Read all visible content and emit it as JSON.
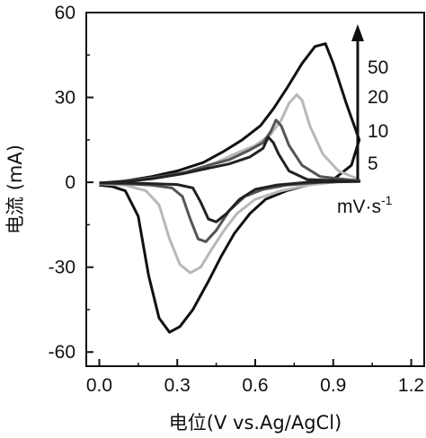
{
  "chart_data": {
    "type": "line",
    "title": "",
    "xlabel": "电位(V vs.Ag/AgCl)",
    "ylabel": "电流 (mA)",
    "xlim": [
      -0.05,
      1.25
    ],
    "ylim": [
      -65,
      60
    ],
    "xticks": [
      "0.0",
      "0.3",
      "0.6",
      "0.9",
      "1.2"
    ],
    "xtick_values": [
      0.0,
      0.3,
      0.6,
      0.9,
      1.2
    ],
    "yticks": [
      "60",
      "30",
      "0",
      "-30",
      "-60"
    ],
    "ytick_values": [
      60,
      30,
      0,
      -30,
      -60
    ],
    "grid": false,
    "legend": {
      "placement": "right",
      "labels": [
        "50",
        "20",
        "10",
        "5"
      ],
      "unit_main": "mV·s",
      "unit_exp": "-1",
      "arrow": "up"
    },
    "series": [
      {
        "label": "50",
        "color": "#111111",
        "points": [
          [
            0.0,
            -1
          ],
          [
            0.05,
            -1.5
          ],
          [
            0.1,
            -3
          ],
          [
            0.15,
            -12
          ],
          [
            0.19,
            -33
          ],
          [
            0.23,
            -48
          ],
          [
            0.27,
            -53
          ],
          [
            0.31,
            -51
          ],
          [
            0.36,
            -45
          ],
          [
            0.42,
            -35
          ],
          [
            0.47,
            -26
          ],
          [
            0.52,
            -18
          ],
          [
            0.58,
            -11
          ],
          [
            0.64,
            -6
          ],
          [
            0.72,
            -3
          ],
          [
            0.8,
            -1
          ],
          [
            0.9,
            1
          ],
          [
            0.97,
            6
          ],
          [
            1.0,
            15
          ],
          [
            0.95,
            28
          ],
          [
            0.9,
            42
          ],
          [
            0.87,
            49
          ],
          [
            0.83,
            48
          ],
          [
            0.78,
            42
          ],
          [
            0.72,
            33
          ],
          [
            0.67,
            26
          ],
          [
            0.62,
            20
          ],
          [
            0.55,
            15
          ],
          [
            0.48,
            11
          ],
          [
            0.4,
            7
          ],
          [
            0.3,
            4
          ],
          [
            0.2,
            2
          ],
          [
            0.1,
            0.5
          ],
          [
            0.0,
            -1
          ]
        ]
      },
      {
        "label": "20",
        "color": "#b8b8b8",
        "points": [
          [
            0.0,
            -0.5
          ],
          [
            0.1,
            -1
          ],
          [
            0.18,
            -3
          ],
          [
            0.23,
            -8
          ],
          [
            0.27,
            -20
          ],
          [
            0.31,
            -29
          ],
          [
            0.35,
            -32
          ],
          [
            0.39,
            -30
          ],
          [
            0.43,
            -24
          ],
          [
            0.48,
            -17
          ],
          [
            0.53,
            -11
          ],
          [
            0.6,
            -6
          ],
          [
            0.7,
            -3
          ],
          [
            0.8,
            -1
          ],
          [
            0.9,
            0
          ],
          [
            1.0,
            1
          ],
          [
            0.92,
            4
          ],
          [
            0.86,
            10
          ],
          [
            0.81,
            20
          ],
          [
            0.78,
            29
          ],
          [
            0.76,
            31
          ],
          [
            0.73,
            28
          ],
          [
            0.7,
            22
          ],
          [
            0.66,
            17
          ],
          [
            0.6,
            13
          ],
          [
            0.52,
            10
          ],
          [
            0.45,
            7
          ],
          [
            0.35,
            4
          ],
          [
            0.25,
            2
          ],
          [
            0.1,
            0.5
          ],
          [
            0.0,
            -0.5
          ]
        ]
      },
      {
        "label": "10",
        "color": "#555555",
        "points": [
          [
            0.0,
            -0.3
          ],
          [
            0.1,
            -0.5
          ],
          [
            0.2,
            -1
          ],
          [
            0.28,
            -2
          ],
          [
            0.32,
            -5
          ],
          [
            0.35,
            -13
          ],
          [
            0.38,
            -20
          ],
          [
            0.41,
            -21
          ],
          [
            0.45,
            -17
          ],
          [
            0.5,
            -10
          ],
          [
            0.56,
            -5
          ],
          [
            0.63,
            -2.5
          ],
          [
            0.72,
            -1
          ],
          [
            0.85,
            0
          ],
          [
            1.0,
            0.5
          ],
          [
            0.85,
            2
          ],
          [
            0.78,
            6
          ],
          [
            0.73,
            13
          ],
          [
            0.7,
            20
          ],
          [
            0.68,
            22
          ],
          [
            0.66,
            18
          ],
          [
            0.63,
            14
          ],
          [
            0.57,
            11
          ],
          [
            0.5,
            8
          ],
          [
            0.42,
            6
          ],
          [
            0.33,
            3.5
          ],
          [
            0.2,
            1.5
          ],
          [
            0.1,
            0.5
          ],
          [
            0.0,
            -0.3
          ]
        ]
      },
      {
        "label": "5",
        "color": "#222222",
        "points": [
          [
            0.0,
            -0.2
          ],
          [
            0.15,
            -0.3
          ],
          [
            0.3,
            -0.8
          ],
          [
            0.36,
            -2
          ],
          [
            0.39,
            -7
          ],
          [
            0.42,
            -13
          ],
          [
            0.45,
            -14
          ],
          [
            0.49,
            -11
          ],
          [
            0.54,
            -6
          ],
          [
            0.6,
            -2.5
          ],
          [
            0.68,
            -1
          ],
          [
            0.8,
            0
          ],
          [
            1.0,
            0.3
          ],
          [
            0.8,
            1
          ],
          [
            0.73,
            4
          ],
          [
            0.69,
            10
          ],
          [
            0.67,
            14
          ],
          [
            0.65,
            16
          ],
          [
            0.63,
            12
          ],
          [
            0.58,
            9
          ],
          [
            0.5,
            6.5
          ],
          [
            0.42,
            5
          ],
          [
            0.32,
            3
          ],
          [
            0.2,
            1.2
          ],
          [
            0.1,
            0.3
          ],
          [
            0.0,
            -0.2
          ]
        ]
      }
    ]
  }
}
